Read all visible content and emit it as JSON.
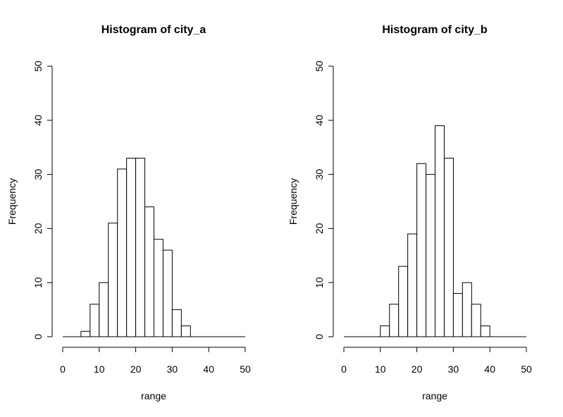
{
  "chart_data": [
    {
      "type": "histogram",
      "title": "Histogram of city_a",
      "xlabel": "range",
      "ylabel": "Frequency",
      "xlim": [
        0,
        50
      ],
      "ylim": [
        0,
        50
      ],
      "x_ticks": [
        "0",
        "10",
        "20",
        "30",
        "40",
        "50"
      ],
      "y_ticks": [
        "0",
        "10",
        "20",
        "30",
        "40",
        "50"
      ],
      "bin_edges": [
        0,
        2.5,
        5,
        7.5,
        10,
        12.5,
        15,
        17.5,
        20,
        22.5,
        25,
        27.5,
        30,
        32.5,
        35,
        37.5,
        40,
        42.5,
        45,
        47.5,
        50
      ],
      "values": [
        0,
        0,
        1,
        6,
        10,
        21,
        31,
        33,
        33,
        24,
        18,
        16,
        5,
        2,
        0,
        0,
        0,
        0,
        0,
        0
      ],
      "grid": false,
      "legend": "none"
    },
    {
      "type": "histogram",
      "title": "Histogram of city_b",
      "xlabel": "range",
      "ylabel": "Frequency",
      "xlim": [
        0,
        50
      ],
      "ylim": [
        0,
        50
      ],
      "x_ticks": [
        "0",
        "10",
        "20",
        "30",
        "40",
        "50"
      ],
      "y_ticks": [
        "0",
        "10",
        "20",
        "30",
        "40",
        "50"
      ],
      "bin_edges": [
        0,
        2.5,
        5,
        7.5,
        10,
        12.5,
        15,
        17.5,
        20,
        22.5,
        25,
        27.5,
        30,
        32.5,
        35,
        37.5,
        40,
        42.5,
        45,
        47.5,
        50
      ],
      "values": [
        0,
        0,
        0,
        0,
        2,
        6,
        13,
        19,
        32,
        30,
        39,
        33,
        8,
        10,
        6,
        2,
        0,
        0,
        0,
        0
      ],
      "grid": false,
      "legend": "none"
    }
  ]
}
